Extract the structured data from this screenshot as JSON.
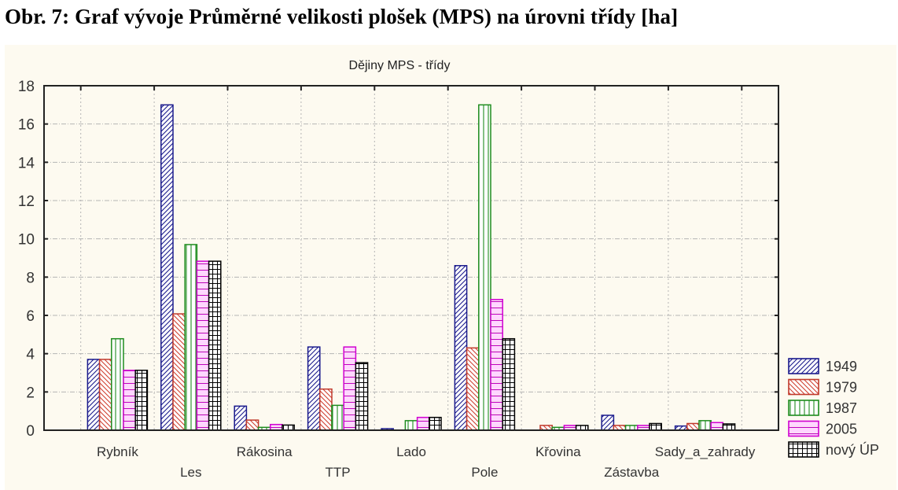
{
  "caption": "Obr. 7: Graf vývoje Průměrné velikosti plošek (MPS) na úrovni třídy [ha]",
  "chart_data": {
    "type": "bar",
    "title": "Dějiny MPS - třídy",
    "xlabel": "",
    "ylabel": "",
    "ylim": [
      0,
      18
    ],
    "yticks": [
      0,
      2,
      4,
      6,
      8,
      10,
      12,
      14,
      16,
      18
    ],
    "grid": true,
    "legend_position": "right-bottom",
    "categories": [
      "Rybník",
      "Les",
      "Rákosina",
      "TTP",
      "Lado",
      "Pole",
      "Křovina",
      "Zástavba",
      "Sady_a_zahrady"
    ],
    "series": [
      {
        "name": "1949",
        "color": "#1a1a8c",
        "pattern": "diag-up",
        "values": [
          3.7,
          17.0,
          1.26,
          4.35,
          0.08,
          8.6,
          0.0,
          0.78,
          0.22
        ]
      },
      {
        "name": "1979",
        "color": "#c0392b",
        "pattern": "diag-down",
        "values": [
          3.7,
          6.08,
          0.53,
          2.15,
          0.0,
          4.3,
          0.25,
          0.25,
          0.35
        ]
      },
      {
        "name": "1987",
        "color": "#1e8c1e",
        "pattern": "vertical",
        "values": [
          4.78,
          9.7,
          0.15,
          1.3,
          0.5,
          17.0,
          0.15,
          0.25,
          0.5
        ]
      },
      {
        "name": "2005",
        "color": "#d000d0",
        "pattern": "horizontal",
        "values": [
          3.13,
          8.83,
          0.3,
          4.35,
          0.67,
          6.83,
          0.25,
          0.25,
          0.4
        ]
      },
      {
        "name": "nový ÚP",
        "color": "#000000",
        "pattern": "grid",
        "values": [
          3.13,
          8.83,
          0.27,
          3.53,
          0.67,
          4.78,
          0.25,
          0.35,
          0.33
        ]
      }
    ]
  }
}
